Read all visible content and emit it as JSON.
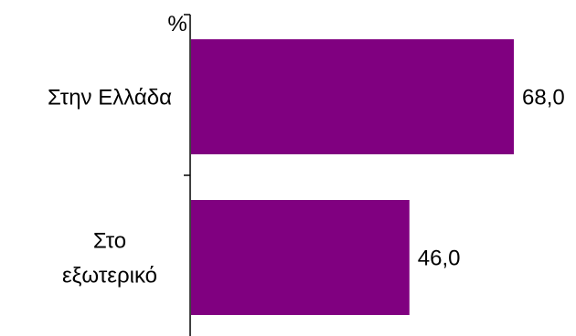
{
  "chart_data": {
    "type": "bar",
    "orientation": "horizontal",
    "unit_label": "%",
    "categories": [
      [
        "Στην Ελλάδα"
      ],
      [
        "Στο",
        "εξωτερικό"
      ]
    ],
    "values": [
      68.0,
      46.0
    ],
    "value_labels": [
      "68,0",
      "46,0"
    ],
    "xlim": [
      0,
      100
    ],
    "grid": false,
    "legend": "none",
    "bar_color": "#800080"
  }
}
